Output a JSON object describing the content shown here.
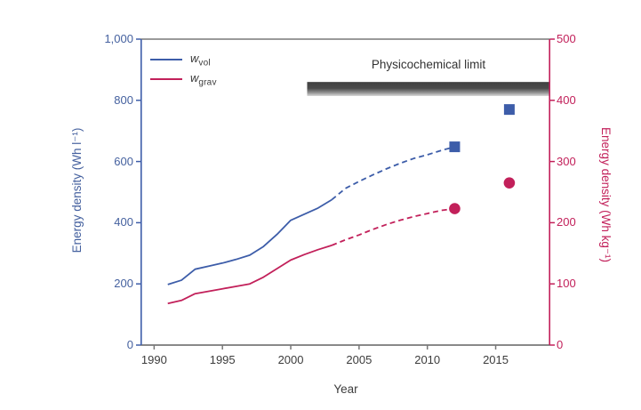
{
  "figure": {
    "background": "#ffffff"
  },
  "colors": {
    "blue_series": "#3d5da9",
    "crimson_series": "#c2205a",
    "top_spine_gray": "#9a9a9a",
    "bottom_spine_gray": "#787878",
    "text_dark": "#3c3c3c",
    "limit_bar_dark": "#404040",
    "limit_bar_light": "#d8d8d8"
  },
  "legend": {
    "items": [
      {
        "symbol": "w",
        "sub": "vol",
        "color": "#3d5da9"
      },
      {
        "symbol": "w",
        "sub": "grav",
        "color": "#c2205a"
      }
    ]
  },
  "chart_data": {
    "type": "line",
    "title": "",
    "xlabel": "Year",
    "ylabel_left": "Energy density (Wh l⁻¹)",
    "ylabel_right": "Energy density (Wh kg⁻¹)",
    "xlim": [
      1989,
      2019
    ],
    "ylim_left": [
      0,
      1000
    ],
    "ylim_right": [
      0,
      500
    ],
    "grid": false,
    "legend_position": "top-left-inside",
    "x_ticks": {
      "values": [
        1990,
        1995,
        2000,
        2005,
        2010,
        2015
      ],
      "labels": [
        "1990",
        "1995",
        "2000",
        "2005",
        "2010",
        "2015"
      ]
    },
    "y_ticks_left": {
      "values": [
        0,
        200,
        400,
        600,
        800,
        1000
      ],
      "labels": [
        "0",
        "200",
        "400",
        "600",
        "800",
        "1,000"
      ]
    },
    "y_ticks_right": {
      "values": [
        0,
        100,
        200,
        300,
        400,
        500
      ],
      "labels": [
        "0",
        "100",
        "200",
        "300",
        "400",
        "500"
      ]
    },
    "series": [
      {
        "name": "w_vol",
        "axis": "left",
        "color": "#3d5da9",
        "marker": "square",
        "solid": {
          "x": [
            1991,
            1992,
            1993,
            1994,
            1995,
            1996,
            1997,
            1998,
            1999,
            2000,
            2001,
            2002,
            2003
          ],
          "y": [
            198,
            212,
            248,
            258,
            268,
            280,
            294,
            322,
            362,
            408,
            428,
            448,
            475
          ]
        },
        "dashed": {
          "x": [
            2003,
            2004,
            2005,
            2006,
            2007,
            2008,
            2009,
            2010,
            2011,
            2012
          ],
          "y": [
            475,
            512,
            535,
            556,
            576,
            594,
            610,
            622,
            636,
            648
          ]
        },
        "points": {
          "x": [
            2012,
            2016
          ],
          "y": [
            648,
            770
          ]
        }
      },
      {
        "name": "w_grav",
        "axis": "right",
        "color": "#c2205a",
        "marker": "circle",
        "solid": {
          "x": [
            1991,
            1992,
            1993,
            1994,
            1995,
            1996,
            1997,
            1998,
            1999,
            2000,
            2001,
            2002,
            2003
          ],
          "y": [
            68,
            73,
            84,
            88,
            92,
            96,
            100,
            111,
            125,
            139,
            148,
            156,
            163
          ]
        },
        "dashed": {
          "x": [
            2003,
            2004,
            2005,
            2006,
            2007,
            2008,
            2009,
            2010,
            2011,
            2012
          ],
          "y": [
            163,
            172,
            180,
            189,
            197,
            204,
            210,
            215,
            220,
            223
          ]
        },
        "points": {
          "x": [
            2012,
            2016
          ],
          "y": [
            223,
            265
          ]
        }
      }
    ],
    "annotation": {
      "label": "Physicochemical limit",
      "x_range": [
        2001.2,
        2019
      ],
      "y_range_left": [
        814,
        860
      ]
    }
  }
}
